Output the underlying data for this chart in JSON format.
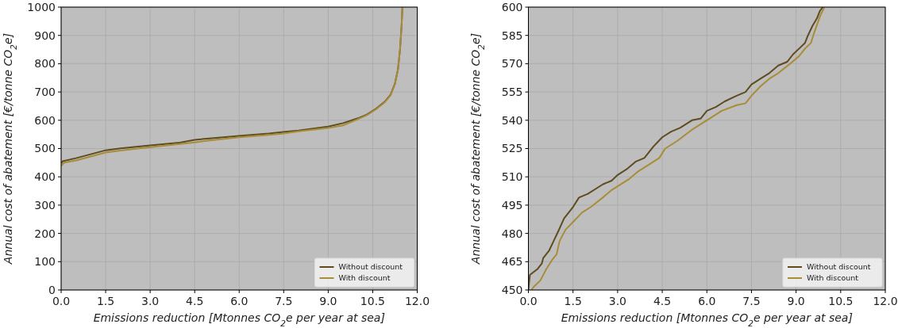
{
  "chart_data": [
    {
      "type": "line",
      "xlabel": "Emissions reduction [Mtonnes CO$_{2}$e per year at sea]",
      "ylabel": "Annual cost of abatement [€/tonne CO$_{2}$e]",
      "xlim": [
        0,
        12
      ],
      "ylim": [
        0,
        1000
      ],
      "xticks": [
        {
          "value": 0,
          "label": "0.0"
        },
        {
          "value": 1.5,
          "label": "1.5"
        },
        {
          "value": 3,
          "label": "3.0"
        },
        {
          "value": 4.5,
          "label": "4.5"
        },
        {
          "value": 6,
          "label": "6.0"
        },
        {
          "value": 7.5,
          "label": "7.5"
        },
        {
          "value": 9,
          "label": "9.0"
        },
        {
          "value": 10.5,
          "label": "10.5"
        },
        {
          "value": 12,
          "label": "12.0"
        }
      ],
      "yticks": [
        0,
        100,
        200,
        300,
        400,
        500,
        600,
        700,
        800,
        900,
        1000
      ],
      "grid": true,
      "legend": "bottom right",
      "line_style": "solid",
      "marker": "none",
      "series": [
        {
          "name": "Without discount",
          "color": "#5e4c20",
          "x": [
            0,
            0.05,
            0.5,
            1,
            1.5,
            2,
            3,
            4,
            4.5,
            5,
            6,
            7,
            7.5,
            8,
            9,
            9.5,
            10,
            10.3,
            10.6,
            10.9,
            11.1,
            11.25,
            11.35,
            11.42,
            11.47,
            11.5
          ],
          "values": [
            448,
            455,
            466,
            480,
            494,
            501,
            511,
            521,
            531,
            536,
            545,
            553,
            559,
            564,
            578,
            590,
            607,
            620,
            640,
            665,
            690,
            730,
            780,
            850,
            930,
            1000
          ]
        },
        {
          "name": "With discount",
          "color": "#a88c38",
          "x": [
            0,
            0.1,
            0.5,
            1,
            1.5,
            2,
            3,
            4,
            4.5,
            5,
            6,
            7,
            7.5,
            8,
            9,
            9.5,
            10,
            10.3,
            10.6,
            10.9,
            11.1,
            11.25,
            11.35,
            11.42,
            11.47,
            11.5
          ],
          "values": [
            438,
            450,
            458,
            472,
            486,
            493,
            505,
            516,
            522,
            529,
            540,
            548,
            553,
            561,
            573,
            582,
            604,
            618,
            638,
            663,
            688,
            728,
            778,
            848,
            928,
            1000
          ]
        }
      ]
    },
    {
      "type": "line",
      "xlabel": "Emissions reduction [Mtonnes CO$_{2}$e per year at sea]",
      "ylabel": "Annual cost of abatement [€/tonne CO$_{2}$e]",
      "xlim": [
        0,
        12
      ],
      "ylim": [
        450,
        600
      ],
      "xticks": [
        {
          "value": 0,
          "label": "0.0"
        },
        {
          "value": 1.5,
          "label": "1.5"
        },
        {
          "value": 3,
          "label": "3.0"
        },
        {
          "value": 4.5,
          "label": "4.5"
        },
        {
          "value": 6,
          "label": "6.0"
        },
        {
          "value": 7.5,
          "label": "7.5"
        },
        {
          "value": 9,
          "label": "9.0"
        },
        {
          "value": 10.5,
          "label": "10.5"
        },
        {
          "value": 12,
          "label": "12.0"
        }
      ],
      "yticks": [
        450,
        465,
        480,
        495,
        510,
        525,
        540,
        555,
        570,
        585,
        600
      ],
      "grid": true,
      "legend": "bottom right",
      "line_style": "solid",
      "marker": "none",
      "series": [
        {
          "name": "Without discount",
          "color": "#5e4c20",
          "x": [
            0,
            0.05,
            0.3,
            0.45,
            0.5,
            0.7,
            0.85,
            1,
            1.2,
            1.5,
            1.7,
            2,
            2.3,
            2.5,
            2.8,
            3,
            3.3,
            3.6,
            3.9,
            4.2,
            4.5,
            4.8,
            5.1,
            5.5,
            5.8,
            6,
            6.3,
            6.6,
            7,
            7.3,
            7.5,
            7.8,
            8.1,
            8.4,
            8.7,
            8.9,
            9.1,
            9.3,
            9.4,
            9.55,
            9.7,
            9.8,
            9.9
          ],
          "values": [
            450,
            458,
            461,
            464,
            467,
            471,
            476,
            481,
            488,
            494,
            499,
            501,
            504,
            506,
            508,
            511,
            514,
            518,
            520,
            526,
            531,
            534,
            536,
            540,
            541,
            545,
            547,
            550,
            553,
            555,
            559,
            562,
            565,
            569,
            571,
            575,
            578,
            581,
            585,
            590,
            594,
            598,
            600
          ]
        },
        {
          "name": "With discount",
          "color": "#a88c38",
          "x": [
            0.1,
            0.2,
            0.4,
            0.6,
            0.8,
            0.95,
            1.05,
            1.25,
            1.5,
            1.8,
            2.1,
            2.5,
            2.8,
            3,
            3.4,
            3.7,
            4.1,
            4.4,
            4.6,
            5,
            5.5,
            6,
            6.5,
            7,
            7.3,
            7.5,
            7.8,
            8.1,
            8.4,
            8.8,
            9.1,
            9.3,
            9.5,
            9.6,
            9.8,
            9.95
          ],
          "values": [
            450,
            452,
            455,
            461,
            466,
            469,
            476,
            482,
            486,
            491,
            494,
            499,
            503,
            505,
            509,
            513,
            517,
            520,
            525,
            529,
            535,
            540,
            545,
            548,
            549,
            553,
            558,
            562,
            565,
            570,
            574,
            578,
            581,
            586,
            595,
            600
          ]
        }
      ]
    }
  ]
}
